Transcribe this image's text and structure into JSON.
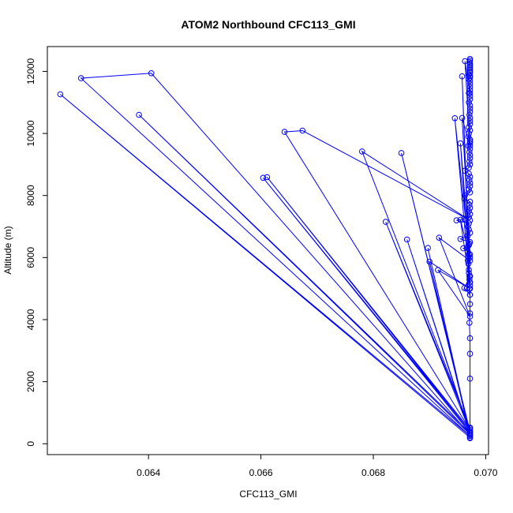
{
  "colors": {
    "series": "#0000ff",
    "axis": "#000000",
    "background": "#ffffff"
  },
  "chart_data": {
    "type": "line",
    "title": "ATOM2 Northbound CFC113_GMI",
    "xlabel": "CFC113_GMI",
    "ylabel": "Altitude (m)",
    "xlim": [
      0.0622,
      0.07005
    ],
    "ylim": [
      -350,
      12800
    ],
    "xticks": [
      0.064,
      0.066,
      0.068,
      0.07
    ],
    "xtick_labels": [
      "0.064",
      "0.066",
      "0.068",
      "0.070"
    ],
    "yticks": [
      0,
      2000,
      4000,
      6000,
      8000,
      10000,
      12000
    ],
    "ytick_labels": [
      "0",
      "2000",
      "4000",
      "6000",
      "8000",
      "10000",
      "12000"
    ],
    "grid": false,
    "series": [
      {
        "marker": "open-circle",
        "x": [
          0.06972,
          0.06972,
          0.06972,
          0.06972,
          0.06972,
          0.06972,
          0.06972,
          0.06971,
          0.06972,
          0.06972,
          0.06972,
          0.06971,
          0.06972,
          0.06971,
          0.06971,
          0.0697,
          0.0697,
          0.06969,
          0.06968,
          0.06969,
          0.0697,
          0.06968,
          0.0696,
          0.06968,
          0.0697,
          0.06971,
          0.06972,
          0.06955,
          0.06968,
          0.06972,
          0.0697,
          0.06968,
          0.0697,
          0.06948,
          0.06962,
          0.0697,
          0.06972,
          0.0697,
          0.06972,
          0.06971,
          0.06972,
          0.06962,
          0.06963,
          0.06972,
          0.0697,
          0.06972,
          0.06972,
          0.06971,
          0.06972,
          0.0697,
          0.06963,
          0.0697,
          0.06972,
          0.06971,
          0.06972,
          0.06972,
          0.06971,
          0.06972,
          0.06969,
          0.06972,
          0.06972,
          0.06972,
          0.06969,
          0.0697,
          0.06972,
          0.0697,
          0.06972,
          0.06972,
          0.06972,
          0.06971,
          0.06972,
          0.06972,
          0.06972,
          0.0697,
          0.06972,
          0.06972,
          0.0697,
          0.06972,
          0.06972,
          0.06972,
          0.06972,
          0.0697,
          0.06972,
          0.06972,
          0.0697,
          0.06972,
          0.06972,
          0.06972,
          0.06972,
          0.06972,
          0.06972,
          0.06972,
          0.06971,
          0.06972,
          0.06972
        ],
        "y": [
          180,
          260,
          350,
          520,
          2100,
          2900,
          3400,
          3900,
          4200,
          4500,
          4800,
          5000,
          5200,
          5300,
          5400,
          5500,
          5600,
          5800,
          5900,
          6000,
          6100,
          6200,
          6300,
          6350,
          6400,
          6450,
          6500,
          6600,
          6700,
          6800,
          6900,
          7000,
          7100,
          7200,
          7250,
          7300,
          7400,
          7500,
          7600,
          7700,
          7800,
          7900,
          8000,
          8100,
          8200,
          8300,
          8400,
          8500,
          8600,
          8700,
          8800,
          8900,
          9000,
          9100,
          9200,
          9300,
          9400,
          9500,
          9600,
          9700,
          9750,
          9800,
          9900,
          10000,
          10100,
          10200,
          10300,
          10400,
          10500,
          10600,
          10700,
          10800,
          10900,
          11000,
          11100,
          11200,
          11300,
          11400,
          11500,
          11600,
          11700,
          11750,
          11800,
          11850,
          11900,
          11950,
          12000,
          12050,
          12100,
          12150,
          12200,
          12250,
          12300,
          12350,
          12400
        ]
      },
      {
        "marker": "open-circle",
        "x": [
          0.06972,
          0.06243,
          0.06972,
          0.0628,
          0.06405,
          0.06972,
          0.06383,
          0.06972,
          0.06604,
          0.06972,
          0.06611,
          0.06972,
          0.06642,
          0.06674,
          0.06972,
          0.0678,
          0.06972,
          0.06822,
          0.06972,
          0.0685,
          0.06972,
          0.0686,
          0.06972,
          0.06897,
          0.06972,
          0.069,
          0.06972,
          0.06915,
          0.06972,
          0.06917,
          0.06972,
          0.06945,
          0.06972,
          0.06955,
          0.06972,
          0.06955,
          0.06972,
          0.06958,
          0.06972,
          0.06962,
          0.06972,
          0.06966,
          0.06972,
          0.06958,
          0.06972,
          0.06963,
          0.06972
        ],
        "y": [
          200,
          11260,
          250,
          11780,
          11940,
          300,
          10600,
          350,
          8570,
          400,
          8590,
          450,
          10050,
          10090,
          7200,
          9420,
          500,
          7150,
          400,
          9370,
          350,
          6580,
          300,
          6310,
          250,
          5870,
          5000,
          5600,
          4100,
          6640,
          5900,
          10490,
          5100,
          7220,
          6000,
          9680,
          5200,
          11840,
          4800,
          5020,
          5400,
          5000,
          6100,
          10500,
          9600,
          12330,
          11300
        ]
      }
    ]
  }
}
